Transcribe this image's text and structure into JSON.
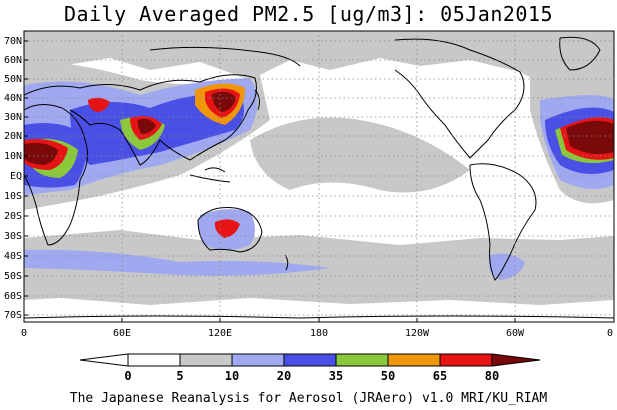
{
  "title": "Daily Averaged PM2.5 [ug/m3]: 05Jan2015",
  "credit": "The Japanese Reanalysis for Aerosol (JRAero) v1.0 MRI/KU_RIAM",
  "lat_labels": [
    "70N",
    "60N",
    "50N",
    "40N",
    "30N",
    "20N",
    "10N",
    "EQ",
    "10S",
    "20S",
    "30S",
    "40S",
    "50S",
    "60S",
    "70S"
  ],
  "lon_labels": [
    "0",
    "60E",
    "120E",
    "180",
    "120W",
    "60W",
    "0"
  ],
  "colorbar": {
    "levels": [
      "0",
      "5",
      "10",
      "20",
      "35",
      "50",
      "65",
      "80"
    ],
    "colors": [
      "#ffffff",
      "#c8c8c8",
      "#a0a8f0",
      "#4a50e6",
      "#8cc83c",
      "#f0960a",
      "#e61414",
      "#7a0a0a"
    ]
  }
}
